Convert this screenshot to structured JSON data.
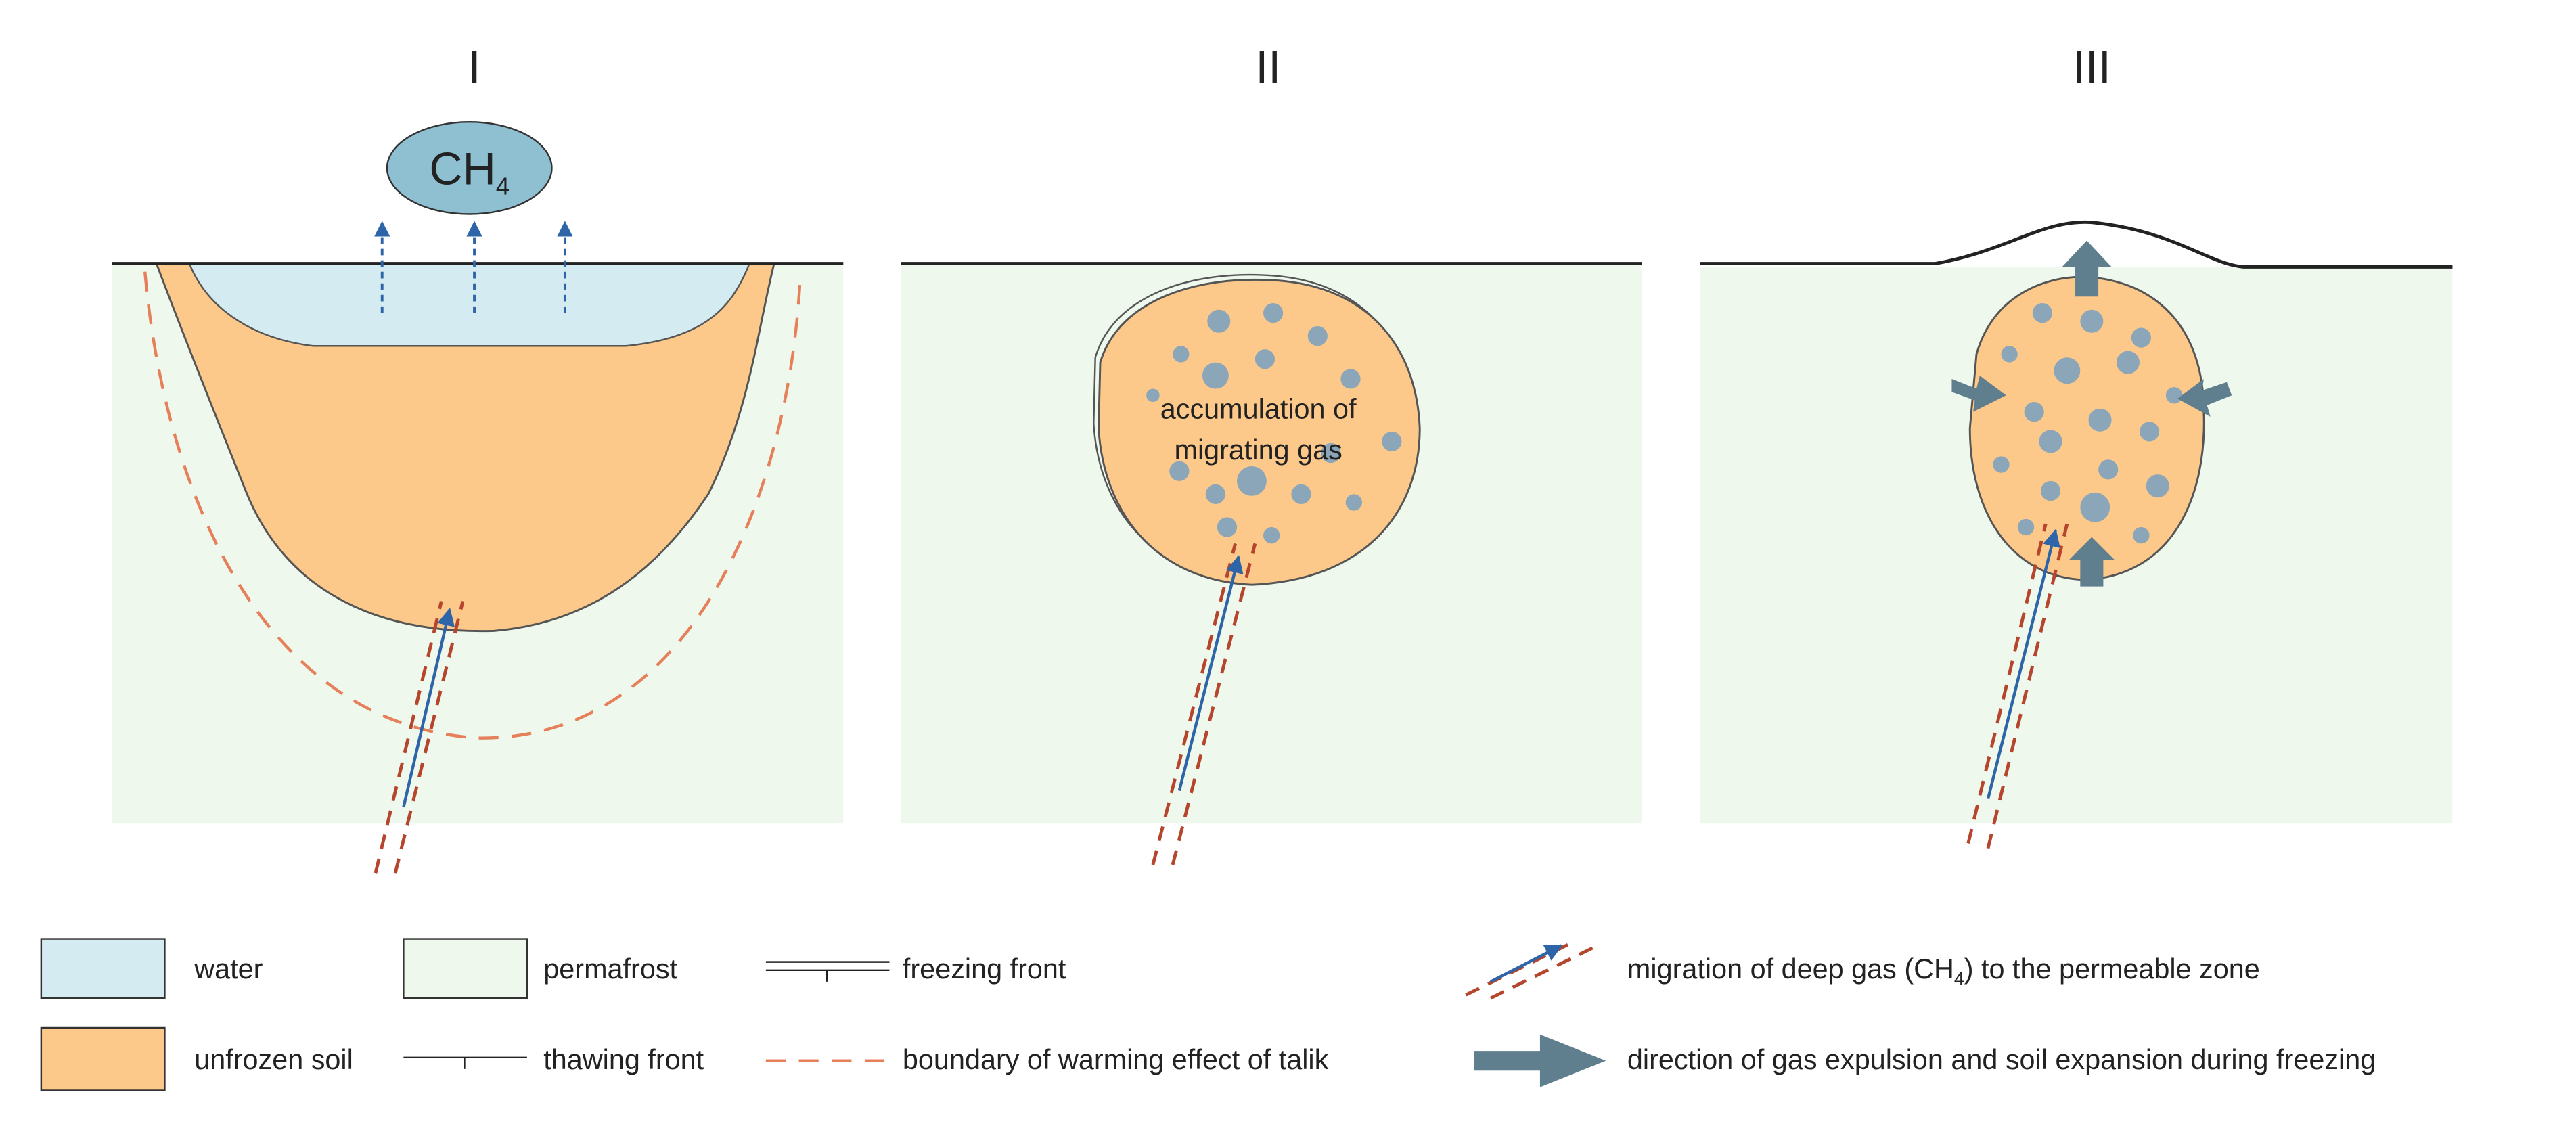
{
  "panels": [
    {
      "title": "I"
    },
    {
      "title": "II",
      "label": [
        "accumulation of",
        "migrating gas"
      ]
    },
    {
      "title": "III"
    }
  ],
  "gas_bubble": {
    "text": "CH",
    "subscript": "4"
  },
  "legend": [
    {
      "label": "water"
    },
    {
      "label": "permafrost"
    },
    {
      "label": "freezing front"
    },
    {
      "label": "unfrozen soil"
    },
    {
      "label": "thawing front"
    },
    {
      "label": "boundary of warming effect of talik"
    },
    {
      "label_parts": [
        "migration of deep gas (CH",
        "4",
        ") to the permeable zone"
      ]
    },
    {
      "label": "direction of gas expulsion and soil expansion during freezing"
    }
  ]
}
